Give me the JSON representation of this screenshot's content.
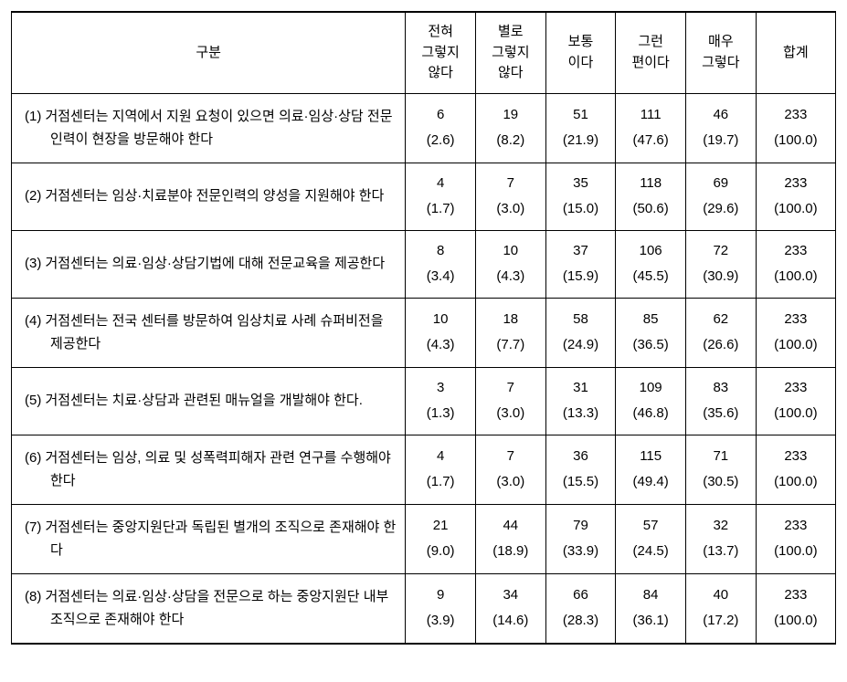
{
  "header": {
    "label": "구분",
    "cols": [
      "전혀\n그렇지\n않다",
      "별로\n그렇지\n않다",
      "보통\n이다",
      "그런\n편이다",
      "매우\n그렇다",
      "합계"
    ]
  },
  "rows": [
    {
      "label": "(1) 거점센터는 지역에서 지원 요청이 있으면 의료·임상·상담 전문인력이 현장을 방문해야 한다",
      "vals": [
        "6",
        "19",
        "51",
        "111",
        "46",
        "233"
      ],
      "pcts": [
        "(2.6)",
        "(8.2)",
        "(21.9)",
        "(47.6)",
        "(19.7)",
        "(100.0)"
      ]
    },
    {
      "label": "(2) 거점센터는 임상·치료분야 전문인력의 양성을 지원해야 한다",
      "vals": [
        "4",
        "7",
        "35",
        "118",
        "69",
        "233"
      ],
      "pcts": [
        "(1.7)",
        "(3.0)",
        "(15.0)",
        "(50.6)",
        "(29.6)",
        "(100.0)"
      ]
    },
    {
      "label": "(3) 거점센터는 의료·임상·상담기법에 대해 전문교육을 제공한다",
      "vals": [
        "8",
        "10",
        "37",
        "106",
        "72",
        "233"
      ],
      "pcts": [
        "(3.4)",
        "(4.3)",
        "(15.9)",
        "(45.5)",
        "(30.9)",
        "(100.0)"
      ]
    },
    {
      "label": "(4) 거점센터는 전국 센터를 방문하여 임상치료 사례 슈퍼비전을 제공한다",
      "vals": [
        "10",
        "18",
        "58",
        "85",
        "62",
        "233"
      ],
      "pcts": [
        "(4.3)",
        "(7.7)",
        "(24.9)",
        "(36.5)",
        "(26.6)",
        "(100.0)"
      ]
    },
    {
      "label": "(5) 거점센터는 치료·상담과 관련된 매뉴얼을 개발해야 한다.",
      "vals": [
        "3",
        "7",
        "31",
        "109",
        "83",
        "233"
      ],
      "pcts": [
        "(1.3)",
        "(3.0)",
        "(13.3)",
        "(46.8)",
        "(35.6)",
        "(100.0)"
      ]
    },
    {
      "label": "(6) 거점센터는 임상, 의료 및 성폭력피해자 관련 연구를 수행해야 한다",
      "vals": [
        "4",
        "7",
        "36",
        "115",
        "71",
        "233"
      ],
      "pcts": [
        "(1.7)",
        "(3.0)",
        "(15.5)",
        "(49.4)",
        "(30.5)",
        "(100.0)"
      ]
    },
    {
      "label": "(7) 거점센터는 중앙지원단과 독립된 별개의 조직으로 존재해야 한다",
      "vals": [
        "21",
        "44",
        "79",
        "57",
        "32",
        "233"
      ],
      "pcts": [
        "(9.0)",
        "(18.9)",
        "(33.9)",
        "(24.5)",
        "(13.7)",
        "(100.0)"
      ]
    },
    {
      "label": "(8) 거점센터는 의료·임상·상담을 전문으로 하는 중앙지원단 내부 조직으로 존재해야 한다",
      "vals": [
        "9",
        "34",
        "66",
        "84",
        "40",
        "233"
      ],
      "pcts": [
        "(3.9)",
        "(14.6)",
        "(28.3)",
        "(36.1)",
        "(17.2)",
        "(100.0)"
      ]
    }
  ]
}
